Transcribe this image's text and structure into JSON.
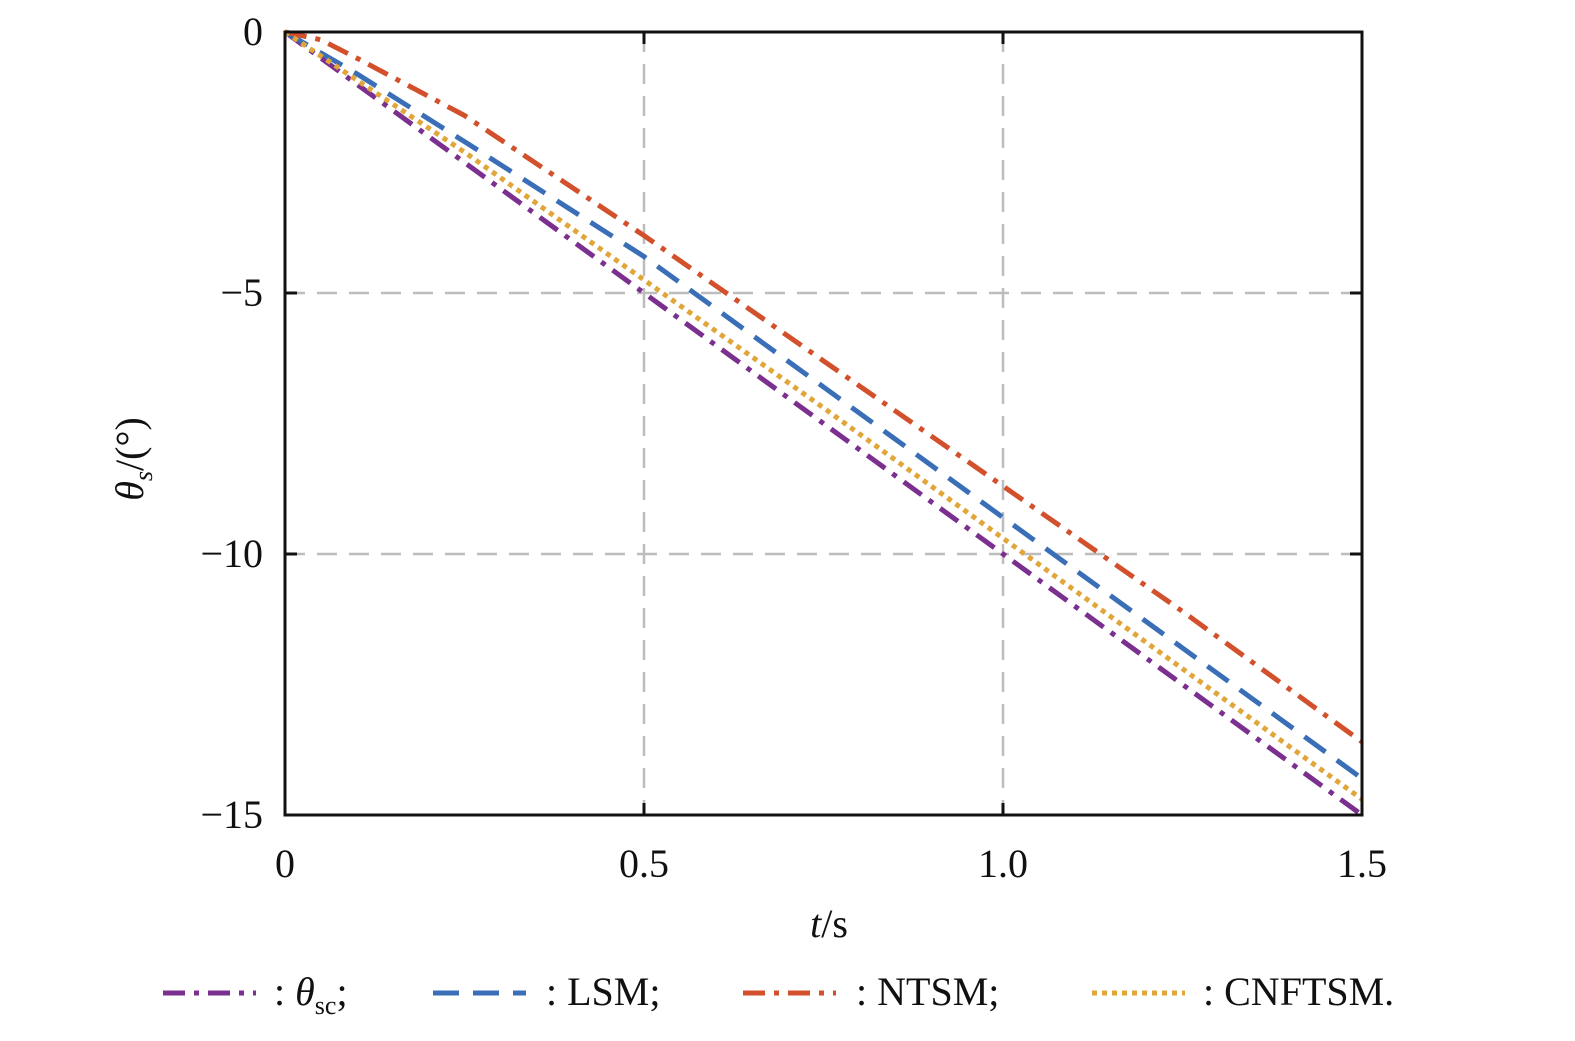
{
  "chart_data": {
    "type": "line",
    "title": "",
    "xlabel": {
      "italic": "t",
      "rest": "/s"
    },
    "ylabel": {
      "symbol": "θ",
      "subscript": "s",
      "rest": "/(°)"
    },
    "xlim": [
      0,
      1.5
    ],
    "ylim": [
      -15,
      0
    ],
    "xticks": [
      {
        "value": 0,
        "label": "0"
      },
      {
        "value": 0.5,
        "label": "0.5"
      },
      {
        "value": 1.0,
        "label": "1.0"
      },
      {
        "value": 1.5,
        "label": "1.5"
      }
    ],
    "yticks": [
      {
        "value": 0,
        "label": "0"
      },
      {
        "value": -5,
        "label": "−5"
      },
      {
        "value": -10,
        "label": "−10"
      },
      {
        "value": -15,
        "label": "−15"
      }
    ],
    "grid": true,
    "legend_position": "bottom",
    "series": [
      {
        "name": ": θsc;",
        "legend": {
          "symbol": "θ",
          "subscript": "sc",
          "tail": ";"
        },
        "color": "#7B2F8E",
        "dash": "dashdot",
        "x": [
          0,
          0.25,
          0.5,
          0.75,
          1.0,
          1.25,
          1.5
        ],
        "y": [
          0,
          -2.5,
          -5.0,
          -7.5,
          -10.0,
          -12.5,
          -15.0
        ]
      },
      {
        "name": ": LSM;",
        "legend": {
          "label": "LSM;"
        },
        "color": "#3A6FB8",
        "dash": "dash",
        "x": [
          0,
          0.1,
          0.25,
          0.5,
          0.75,
          1.0,
          1.25,
          1.5
        ],
        "y": [
          0,
          -0.8,
          -2.1,
          -4.3,
          -6.8,
          -9.3,
          -11.8,
          -14.3
        ]
      },
      {
        "name": ": NTSM;",
        "legend": {
          "label": "NTSM;"
        },
        "color": "#D2502B",
        "dash": "dashdot",
        "x": [
          0,
          0.05,
          0.1,
          0.25,
          0.5,
          0.75,
          1.0,
          1.25,
          1.5
        ],
        "y": [
          0,
          -0.15,
          -0.5,
          -1.6,
          -3.9,
          -6.3,
          -8.7,
          -11.1,
          -13.6
        ]
      },
      {
        "name": ": CNFTSM.",
        "legend": {
          "label": "CNFTSM."
        },
        "color": "#E1A63A",
        "dash": "dot",
        "x": [
          0,
          0.25,
          0.5,
          0.75,
          1.0,
          1.25,
          1.5
        ],
        "y": [
          0,
          -2.3,
          -4.75,
          -7.2,
          -9.7,
          -12.2,
          -14.7
        ]
      }
    ]
  }
}
